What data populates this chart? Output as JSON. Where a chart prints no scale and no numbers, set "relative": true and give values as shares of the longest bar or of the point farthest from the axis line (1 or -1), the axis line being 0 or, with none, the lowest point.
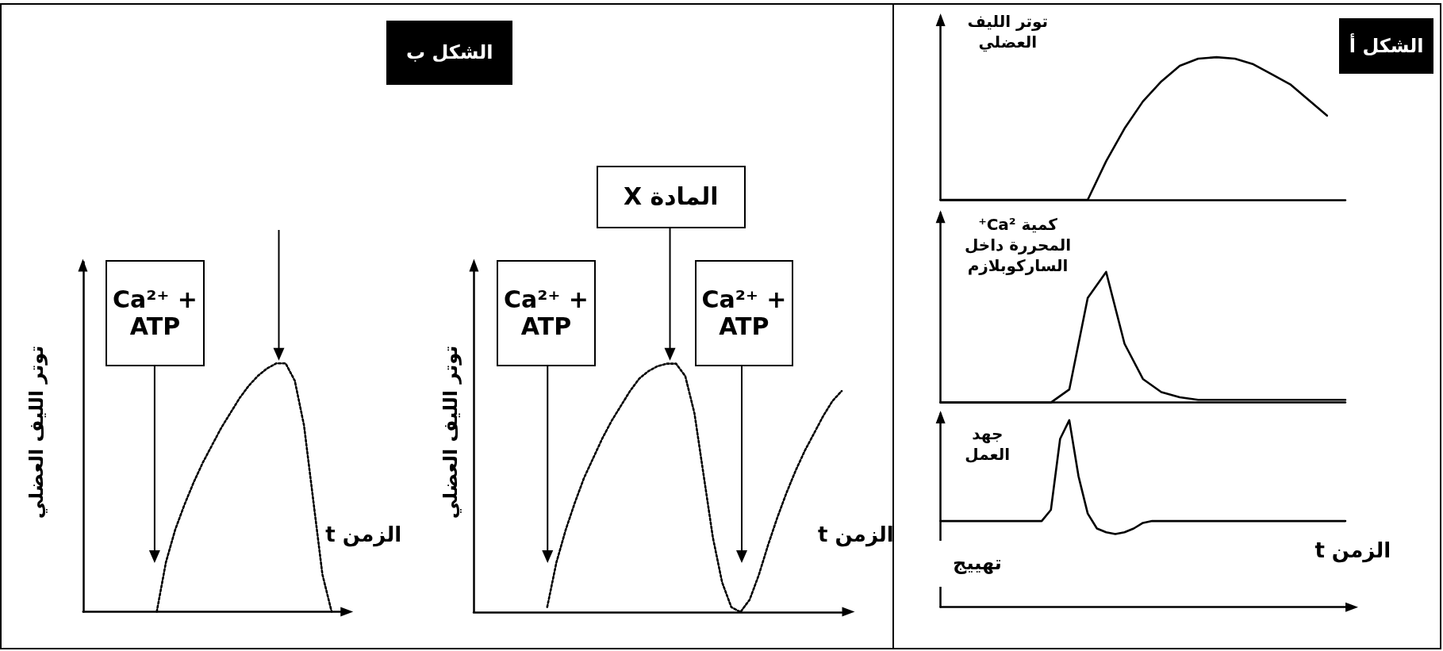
{
  "chart_data": [
    {
      "type": "line",
      "title": "الشكل أ",
      "ylabel": "توتر الليف العضلي",
      "relative": true,
      "grid": false,
      "marker": "none",
      "line_style": "solid",
      "categories": [
        null,
        null,
        null,
        null,
        null,
        null,
        null,
        null,
        null,
        null,
        null,
        null,
        null,
        null,
        null,
        null,
        null,
        null,
        null,
        null,
        null,
        null,
        null
      ],
      "series": [
        {
          "color": "#000000",
          "values": [
            0,
            0,
            0,
            0,
            0,
            0,
            0,
            0,
            0,
            0.27,
            0.5,
            0.69,
            0.83,
            0.94,
            0.99,
            1.0,
            0.99,
            0.95,
            0.88,
            0.81,
            0.7,
            0.59,
            null
          ]
        }
      ]
    },
    {
      "type": "line",
      "ylabel": "كمية Ca²⁺ المحررة داخل الساركوبلازم",
      "relative": true,
      "grid": false,
      "marker": "none",
      "line_style": "solid",
      "categories": [
        null,
        null,
        null,
        null,
        null,
        null,
        null,
        null,
        null,
        null,
        null,
        null,
        null,
        null,
        null,
        null,
        null,
        null,
        null,
        null,
        null,
        null,
        null
      ],
      "series": [
        {
          "color": "#000000",
          "values": [
            0,
            0,
            0,
            0,
            0,
            0,
            0,
            0.1,
            0.8,
            1.0,
            0.45,
            0.18,
            0.08,
            0.04,
            0.02,
            0.02,
            0.02,
            0.02,
            0.02,
            0.02,
            0.02,
            0.02,
            0.02
          ]
        }
      ]
    },
    {
      "type": "line",
      "ylabel": "جهد العمل",
      "xlabel": "الزمن t",
      "annotations": [
        "تهييج"
      ],
      "relative": true,
      "grid": false,
      "marker": "none",
      "line_style": "solid",
      "categories": [
        null,
        null,
        null,
        null,
        null,
        null,
        null,
        null,
        null,
        null,
        null,
        null,
        null,
        null,
        null,
        null,
        null,
        null,
        null,
        null,
        null,
        null,
        null,
        null,
        null,
        null,
        null,
        null,
        null,
        null,
        null,
        null,
        null,
        null,
        null,
        null,
        null,
        null,
        null,
        null,
        null,
        null,
        null,
        null,
        null
      ],
      "series": [
        {
          "color": "#000000",
          "values": [
            0.46,
            0.46,
            0.46,
            0.46,
            0.46,
            0.46,
            0.46,
            0.46,
            0.46,
            0.46,
            0.46,
            0.46,
            0.52,
            0.9,
            1.0,
            0.7,
            0.5,
            0.42,
            0.4,
            0.39,
            0.4,
            0.42,
            0.45,
            0.46,
            0.46,
            0.46,
            0.46,
            0.46,
            0.46,
            0.46,
            0.46,
            0.46,
            0.46,
            0.46,
            0.46,
            0.46,
            0.46,
            0.46,
            0.46,
            0.46,
            0.46,
            0.46,
            0.46,
            0.46,
            0.46
          ]
        }
      ]
    },
    {
      "type": "line",
      "ylabel": "توتر الليف العضلي",
      "xlabel": "الزمن t",
      "annotations": [
        "Ca²⁺ + ATP"
      ],
      "relative": true,
      "grid": false,
      "marker": "none",
      "line_style": "dotted",
      "categories": [
        null,
        null,
        null,
        null,
        null,
        null,
        null,
        null,
        null,
        null,
        null,
        null,
        null,
        null,
        null,
        null,
        null,
        null,
        null,
        null,
        null,
        null,
        null,
        null,
        null,
        null,
        null,
        null,
        null
      ],
      "series": [
        {
          "color": "#000000",
          "values": [
            null,
            null,
            null,
            null,
            null,
            null,
            null,
            null,
            0,
            0.2,
            0.33,
            0.43,
            0.52,
            0.6,
            0.67,
            0.74,
            0.8,
            0.86,
            0.91,
            0.95,
            0.98,
            1.0,
            1.0,
            0.93,
            0.75,
            0.45,
            0.15,
            0,
            null
          ]
        }
      ]
    },
    {
      "type": "line",
      "title": "الشكل ب",
      "ylabel": "توتر الليف العضلي",
      "xlabel": "الزمن t",
      "annotations": [
        "Ca²⁺ + ATP",
        "المادة X",
        "Ca²⁺ + ATP"
      ],
      "relative": true,
      "grid": false,
      "marker": "none",
      "line_style": "dotted",
      "categories": [
        null,
        null,
        null,
        null,
        null,
        null,
        null,
        null,
        null,
        null,
        null,
        null,
        null,
        null,
        null,
        null,
        null,
        null,
        null,
        null,
        null,
        null,
        null,
        null,
        null,
        null,
        null,
        null,
        null,
        null,
        null,
        null,
        null,
        null,
        null,
        null,
        null,
        null,
        null,
        null,
        null
      ],
      "series": [
        {
          "color": "#000000",
          "values": [
            null,
            null,
            null,
            null,
            null,
            null,
            null,
            null,
            0.02,
            0.2,
            0.33,
            0.44,
            0.54,
            0.62,
            0.7,
            0.77,
            0.83,
            0.89,
            0.94,
            0.97,
            0.99,
            1.0,
            1.0,
            0.95,
            0.8,
            0.55,
            0.3,
            0.12,
            0.02,
            0,
            0.05,
            0.15,
            0.27,
            0.38,
            0.48,
            0.57,
            0.65,
            0.72,
            0.79,
            0.85,
            0.89
          ]
        }
      ]
    }
  ]
}
